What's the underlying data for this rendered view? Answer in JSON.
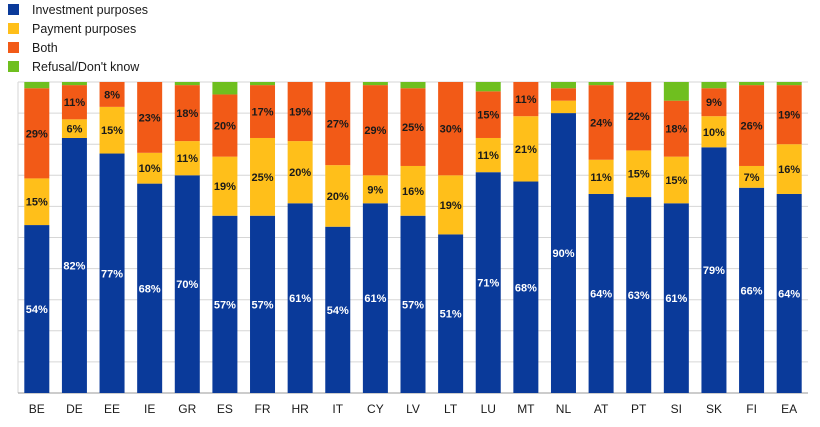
{
  "legend": {
    "items": [
      {
        "label": "Investment purposes",
        "color": "#0a3a9a"
      },
      {
        "label": "Payment purposes",
        "color": "#ffbf1a"
      },
      {
        "label": "Both",
        "color": "#f25a17"
      },
      {
        "label": "Refusal/Don't know",
        "color": "#6fbf1f"
      }
    ]
  },
  "chart_data": {
    "type": "bar",
    "stacked": true,
    "normalized_percent": true,
    "ylim": [
      0,
      100
    ],
    "grid": true,
    "legend_position": "top-left",
    "categories": [
      "BE",
      "DE",
      "EE",
      "IE",
      "GR",
      "ES",
      "FR",
      "HR",
      "IT",
      "CY",
      "LV",
      "LT",
      "LU",
      "MT",
      "NL",
      "AT",
      "PT",
      "SI",
      "SK",
      "FI",
      "EA"
    ],
    "series": [
      {
        "name": "Investment purposes",
        "color": "#0a3a9a",
        "values": [
          54,
          82,
          77,
          68,
          70,
          57,
          57,
          61,
          54,
          61,
          57,
          51,
          71,
          68,
          90,
          64,
          63,
          61,
          79,
          66,
          64
        ],
        "labels": [
          "54%",
          "82%",
          "77%",
          "68%",
          "70%",
          "57%",
          "57%",
          "61%",
          "54%",
          "61%",
          "57%",
          "51%",
          "71%",
          "68%",
          "90%",
          "64%",
          "63%",
          "61%",
          "79%",
          "66%",
          "64%"
        ]
      },
      {
        "name": "Payment purposes",
        "color": "#ffbf1a",
        "values": [
          15,
          6,
          15,
          10,
          11,
          19,
          25,
          20,
          20,
          9,
          16,
          19,
          11,
          21,
          4,
          11,
          15,
          15,
          10,
          7,
          16
        ],
        "labels": [
          "15%",
          "6%",
          "15%",
          "10%",
          "11%",
          "19%",
          "25%",
          "20%",
          "20%",
          "9%",
          "16%",
          "19%",
          "11%",
          "21%",
          "",
          "11%",
          "15%",
          "15%",
          "10%",
          "7%",
          "16%"
        ]
      },
      {
        "name": "Both",
        "color": "#f25a17",
        "values": [
          29,
          11,
          8,
          23,
          18,
          20,
          17,
          19,
          27,
          29,
          25,
          30,
          15,
          11,
          4,
          24,
          22,
          18,
          9,
          26,
          19
        ],
        "labels": [
          "29%",
          "11%",
          "8%",
          "23%",
          "18%",
          "20%",
          "17%",
          "19%",
          "27%",
          "29%",
          "25%",
          "30%",
          "15%",
          "11%",
          "",
          "24%",
          "22%",
          "18%",
          "9%",
          "26%",
          "19%"
        ]
      },
      {
        "name": "Refusal/Don't know",
        "color": "#6fbf1f",
        "values": [
          2,
          1,
          0,
          0,
          1,
          4,
          1,
          0,
          0,
          1,
          2,
          0,
          3,
          0,
          2,
          1,
          0,
          6,
          2,
          1,
          1
        ],
        "labels": [
          "",
          "",
          "",
          "",
          "",
          "",
          "",
          "",
          "",
          "",
          "",
          "",
          "",
          "",
          "",
          "",
          "",
          "",
          "",
          "",
          ""
        ]
      }
    ]
  }
}
